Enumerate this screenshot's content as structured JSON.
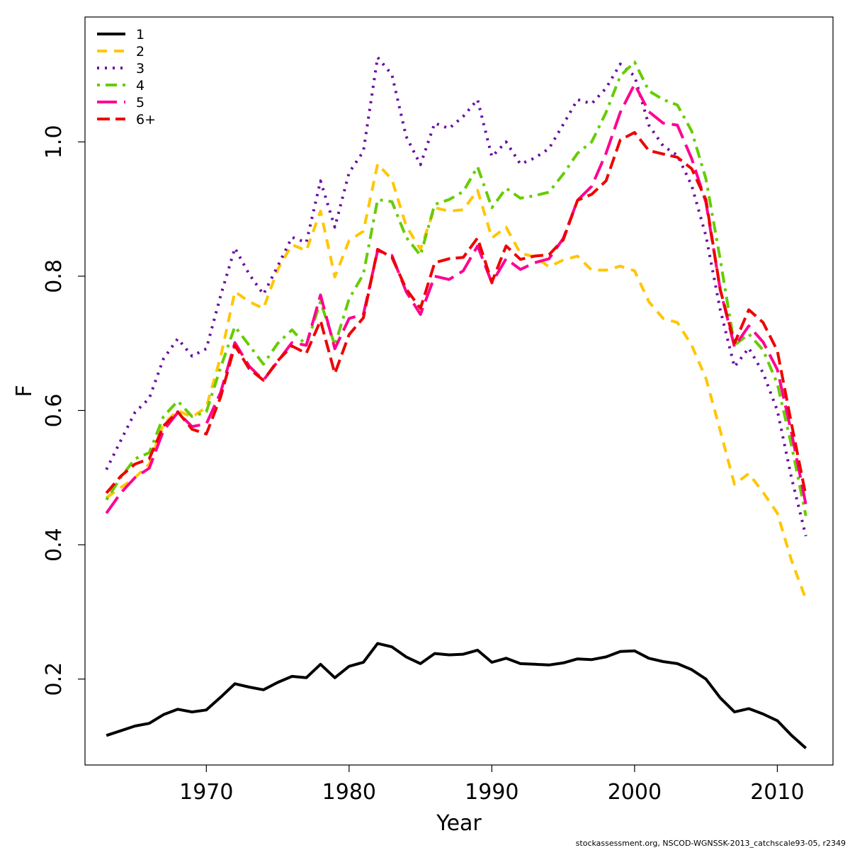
{
  "footer": "stockassessment.org, NSCOD-WGNSSK-2013_catchscale93-05, r2349",
  "chart_data": {
    "type": "line",
    "xlabel": "Year",
    "ylabel": "F",
    "xlim": [
      1961.5,
      2013.9
    ],
    "ylim": [
      0.072,
      1.186
    ],
    "x_ticks": [
      1970,
      1980,
      1990,
      2000,
      2010
    ],
    "y_ticks": [
      0.2,
      0.4,
      0.6,
      0.8,
      1.0
    ],
    "y_tick_labels": [
      "0.2",
      "0.4",
      "0.6",
      "0.8",
      "1.0"
    ],
    "legend_position": "top-left",
    "grid": false,
    "x": [
      1963,
      1964,
      1965,
      1966,
      1967,
      1968,
      1969,
      1970,
      1971,
      1972,
      1973,
      1974,
      1975,
      1976,
      1977,
      1978,
      1979,
      1980,
      1981,
      1982,
      1983,
      1984,
      1985,
      1986,
      1987,
      1988,
      1989,
      1990,
      1991,
      1992,
      1993,
      1994,
      1995,
      1996,
      1997,
      1998,
      1999,
      2000,
      2001,
      2002,
      2003,
      2004,
      2005,
      2006,
      2007,
      2008,
      2009,
      2010,
      2011,
      2012
    ],
    "series": [
      {
        "name": "1",
        "color": "#000000",
        "dash": "solid",
        "values": [
          0.116,
          0.123,
          0.13,
          0.134,
          0.147,
          0.155,
          0.151,
          0.154,
          0.173,
          0.193,
          0.188,
          0.184,
          0.195,
          0.204,
          0.202,
          0.222,
          0.202,
          0.219,
          0.225,
          0.253,
          0.248,
          0.233,
          0.223,
          0.238,
          0.236,
          0.237,
          0.243,
          0.225,
          0.231,
          0.223,
          0.222,
          0.221,
          0.224,
          0.23,
          0.229,
          0.233,
          0.241,
          0.242,
          0.231,
          0.226,
          0.223,
          0.214,
          0.2,
          0.172,
          0.151,
          0.156,
          0.148,
          0.138,
          0.116,
          0.097
        ]
      },
      {
        "name": "2",
        "color": "#ffc600",
        "dash": "dashed",
        "values": [
          0.47,
          0.485,
          0.5,
          0.52,
          0.58,
          0.6,
          0.59,
          0.605,
          0.68,
          0.777,
          0.762,
          0.752,
          0.81,
          0.847,
          0.838,
          0.897,
          0.799,
          0.853,
          0.867,
          0.967,
          0.944,
          0.875,
          0.84,
          0.902,
          0.897,
          0.899,
          0.928,
          0.857,
          0.873,
          0.834,
          0.829,
          0.814,
          0.824,
          0.83,
          0.809,
          0.809,
          0.815,
          0.808,
          0.762,
          0.737,
          0.731,
          0.697,
          0.648,
          0.57,
          0.49,
          0.506,
          0.478,
          0.447,
          0.376,
          0.319
        ]
      },
      {
        "name": "3",
        "color": "#6a0aa0",
        "dash": "dotted",
        "values": [
          0.512,
          0.555,
          0.597,
          0.618,
          0.677,
          0.707,
          0.681,
          0.692,
          0.771,
          0.842,
          0.803,
          0.773,
          0.815,
          0.858,
          0.85,
          0.942,
          0.873,
          0.954,
          0.986,
          1.126,
          1.1,
          1.008,
          0.966,
          1.028,
          1.02,
          1.038,
          1.063,
          0.978,
          1.0,
          0.967,
          0.976,
          0.99,
          1.026,
          1.063,
          1.057,
          1.08,
          1.116,
          1.098,
          1.025,
          0.994,
          0.98,
          0.935,
          0.86,
          0.75,
          0.665,
          0.693,
          0.656,
          0.6,
          0.499,
          0.413
        ]
      },
      {
        "name": "4",
        "color": "#66cc00",
        "dash": "dotdash",
        "values": [
          0.467,
          0.5,
          0.528,
          0.537,
          0.591,
          0.614,
          0.591,
          0.598,
          0.664,
          0.725,
          0.697,
          0.669,
          0.7,
          0.72,
          0.697,
          0.762,
          0.697,
          0.766,
          0.803,
          0.914,
          0.911,
          0.858,
          0.831,
          0.907,
          0.914,
          0.926,
          0.963,
          0.902,
          0.931,
          0.916,
          0.92,
          0.925,
          0.952,
          0.983,
          1.0,
          1.044,
          1.098,
          1.119,
          1.076,
          1.063,
          1.055,
          1.016,
          0.945,
          0.825,
          0.697,
          0.714,
          0.69,
          0.64,
          0.547,
          0.443
        ]
      },
      {
        "name": "5",
        "color": "#ff0090",
        "dash": "longdash",
        "values": [
          0.447,
          0.477,
          0.5,
          0.514,
          0.57,
          0.597,
          0.576,
          0.58,
          0.627,
          0.701,
          0.666,
          0.645,
          0.673,
          0.701,
          0.697,
          0.772,
          0.692,
          0.737,
          0.743,
          0.838,
          0.831,
          0.777,
          0.743,
          0.8,
          0.795,
          0.808,
          0.845,
          0.79,
          0.826,
          0.81,
          0.82,
          0.826,
          0.856,
          0.913,
          0.934,
          0.983,
          1.044,
          1.086,
          1.045,
          1.028,
          1.025,
          0.975,
          0.91,
          0.78,
          0.695,
          0.726,
          0.702,
          0.661,
          0.566,
          0.46
        ]
      },
      {
        "name": "6+",
        "color": "#ee0000",
        "dash": "dashed2",
        "values": [
          0.477,
          0.502,
          0.52,
          0.528,
          0.577,
          0.598,
          0.572,
          0.565,
          0.62,
          0.697,
          0.662,
          0.645,
          0.674,
          0.696,
          0.685,
          0.734,
          0.655,
          0.713,
          0.738,
          0.84,
          0.828,
          0.781,
          0.752,
          0.82,
          0.826,
          0.828,
          0.857,
          0.791,
          0.845,
          0.825,
          0.83,
          0.832,
          0.854,
          0.913,
          0.922,
          0.942,
          1.003,
          1.014,
          0.987,
          0.982,
          0.977,
          0.96,
          0.914,
          0.78,
          0.7,
          0.75,
          0.731,
          0.689,
          0.579,
          0.473
        ]
      }
    ]
  }
}
